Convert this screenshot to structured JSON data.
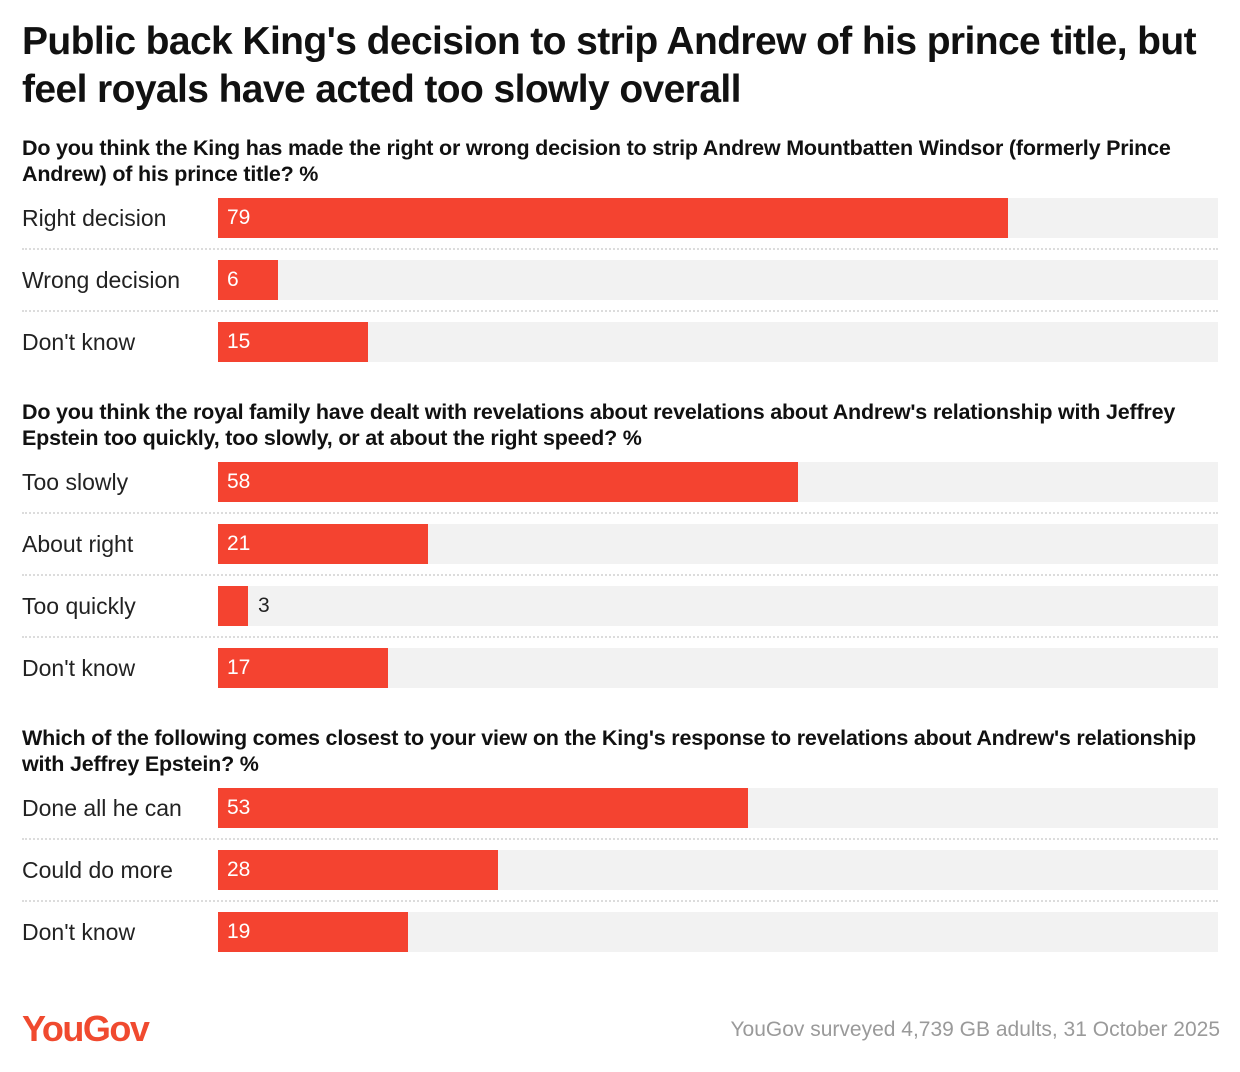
{
  "title": "Public back King's decision to strip Andrew of his prince title, but feel royals have acted too slowly overall",
  "chart_data": [
    {
      "type": "bar",
      "title": "Do you think the King has made the right or wrong decision to strip Andrew Mountbatten Windsor (formerly Prince Andrew) of his prince title? %",
      "categories": [
        "Right decision",
        "Wrong decision",
        "Don't know"
      ],
      "values": [
        79,
        6,
        15
      ],
      "color": "#f44330",
      "xlim": [
        0,
        100
      ]
    },
    {
      "type": "bar",
      "title": "Do you think the royal family have dealt with revelations about revelations about Andrew's relationship with Jeffrey Epstein too quickly, too slowly, or at about the right speed? %",
      "categories": [
        "Too slowly",
        "About right",
        "Too quickly",
        "Don't know"
      ],
      "values": [
        58,
        21,
        3,
        17
      ],
      "color": "#f44330",
      "xlim": [
        0,
        100
      ]
    },
    {
      "type": "bar",
      "title": "Which of the following comes closest to your view on the King's response to revelations about Andrew's relationship with Jeffrey Epstein? %",
      "categories": [
        "Done all he can",
        "Could do more",
        "Don't know"
      ],
      "values": [
        53,
        28,
        19
      ],
      "color": "#f44330",
      "xlim": [
        0,
        100
      ]
    }
  ],
  "logo": "YouGov",
  "source": "YouGov surveyed 4,739 GB adults, 31 October 2025"
}
